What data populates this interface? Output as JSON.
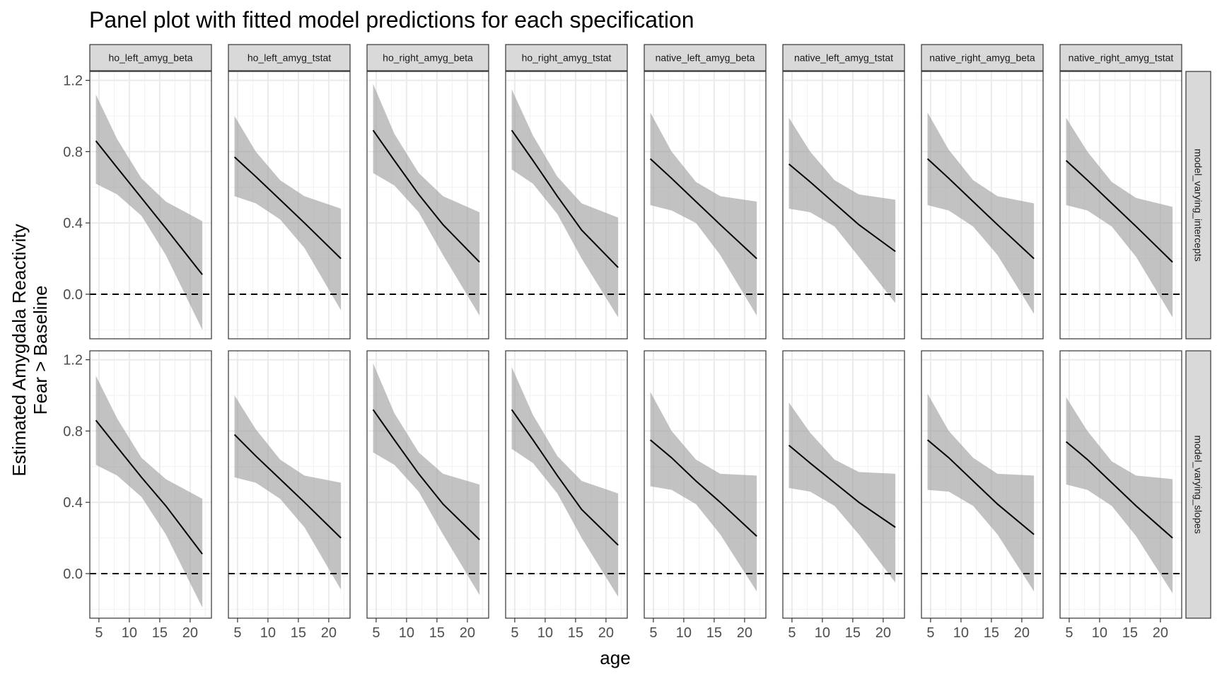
{
  "chart_data": {
    "type": "line",
    "title": "Panel plot with fitted model predictions for each specification",
    "xlabel": "age",
    "ylabel_lines": [
      "Estimated Amygdala Reactivity",
      "Fear > Baseline"
    ],
    "xlim": [
      3.5,
      23.5
    ],
    "ylim": [
      -0.25,
      1.25
    ],
    "x_ticks": [
      5,
      10,
      15,
      20
    ],
    "y_ticks": [
      0.0,
      0.4,
      0.8,
      1.2
    ],
    "y_tick_labels": [
      "0.0",
      "0.4",
      "0.8",
      "1.2"
    ],
    "reference_line": {
      "y": 0,
      "style": "dashed"
    },
    "grid": true,
    "colors": {
      "line": "#000000",
      "ribbon": "#999999",
      "strip_fill": "#d9d9d9",
      "grid": "#ebebeb",
      "border": "#333333"
    },
    "columns": [
      "ho_left_amyg_beta",
      "ho_left_amyg_tstat",
      "ho_right_amyg_beta",
      "ho_right_amyg_tstat",
      "native_left_amyg_beta",
      "native_left_amyg_tstat",
      "native_right_amyg_beta",
      "native_right_amyg_tstat"
    ],
    "rows": [
      "model_varying_intercepts",
      "model_varying_slopes"
    ],
    "panels": [
      [
        {
          "x": [
            4.5,
            8,
            12,
            16,
            22
          ],
          "fit": [
            0.86,
            0.71,
            0.54,
            0.37,
            0.11
          ],
          "lower": [
            0.62,
            0.56,
            0.44,
            0.22,
            -0.2
          ],
          "upper": [
            1.12,
            0.87,
            0.65,
            0.52,
            0.41
          ]
        },
        {
          "x": [
            4.5,
            8,
            12,
            16,
            22
          ],
          "fit": [
            0.77,
            0.66,
            0.53,
            0.4,
            0.2
          ],
          "lower": [
            0.55,
            0.51,
            0.42,
            0.26,
            -0.09
          ],
          "upper": [
            1.0,
            0.8,
            0.64,
            0.55,
            0.48
          ]
        },
        {
          "x": [
            4.5,
            8,
            12,
            16,
            22
          ],
          "fit": [
            0.92,
            0.75,
            0.56,
            0.39,
            0.18
          ],
          "lower": [
            0.68,
            0.61,
            0.46,
            0.22,
            -0.12
          ],
          "upper": [
            1.18,
            0.9,
            0.68,
            0.55,
            0.46
          ]
        },
        {
          "x": [
            4.5,
            8,
            12,
            16,
            22
          ],
          "fit": [
            0.92,
            0.75,
            0.55,
            0.36,
            0.15
          ],
          "lower": [
            0.7,
            0.62,
            0.45,
            0.2,
            -0.13
          ],
          "upper": [
            1.15,
            0.89,
            0.66,
            0.51,
            0.43
          ]
        },
        {
          "x": [
            4.5,
            8,
            12,
            16,
            22
          ],
          "fit": [
            0.76,
            0.65,
            0.52,
            0.39,
            0.2
          ],
          "lower": [
            0.5,
            0.47,
            0.4,
            0.22,
            -0.12
          ],
          "upper": [
            1.02,
            0.8,
            0.63,
            0.55,
            0.52
          ]
        },
        {
          "x": [
            4.5,
            8,
            12,
            16,
            22
          ],
          "fit": [
            0.73,
            0.63,
            0.51,
            0.39,
            0.24
          ],
          "lower": [
            0.48,
            0.46,
            0.38,
            0.21,
            -0.05
          ],
          "upper": [
            0.99,
            0.8,
            0.64,
            0.56,
            0.53
          ]
        },
        {
          "x": [
            4.5,
            8,
            12,
            16,
            22
          ],
          "fit": [
            0.76,
            0.65,
            0.52,
            0.39,
            0.2
          ],
          "lower": [
            0.5,
            0.47,
            0.38,
            0.22,
            -0.11
          ],
          "upper": [
            1.02,
            0.81,
            0.64,
            0.55,
            0.51
          ]
        },
        {
          "x": [
            4.5,
            8,
            12,
            16,
            22
          ],
          "fit": [
            0.75,
            0.64,
            0.51,
            0.38,
            0.18
          ],
          "lower": [
            0.5,
            0.47,
            0.38,
            0.21,
            -0.13
          ],
          "upper": [
            0.99,
            0.8,
            0.63,
            0.54,
            0.49
          ]
        }
      ],
      [
        {
          "x": [
            4.5,
            8,
            12,
            16,
            22
          ],
          "fit": [
            0.86,
            0.71,
            0.54,
            0.38,
            0.11
          ],
          "lower": [
            0.61,
            0.55,
            0.43,
            0.22,
            -0.19
          ],
          "upper": [
            1.11,
            0.87,
            0.65,
            0.53,
            0.42
          ]
        },
        {
          "x": [
            4.5,
            8,
            12,
            16,
            22
          ],
          "fit": [
            0.78,
            0.66,
            0.53,
            0.4,
            0.2
          ],
          "lower": [
            0.54,
            0.51,
            0.42,
            0.26,
            -0.09
          ],
          "upper": [
            1.0,
            0.81,
            0.64,
            0.55,
            0.51
          ]
        },
        {
          "x": [
            4.5,
            8,
            12,
            16,
            22
          ],
          "fit": [
            0.92,
            0.75,
            0.56,
            0.39,
            0.19
          ],
          "lower": [
            0.68,
            0.61,
            0.46,
            0.22,
            -0.12
          ],
          "upper": [
            1.18,
            0.9,
            0.68,
            0.56,
            0.5
          ]
        },
        {
          "x": [
            4.5,
            8,
            12,
            16,
            22
          ],
          "fit": [
            0.92,
            0.75,
            0.55,
            0.36,
            0.16
          ],
          "lower": [
            0.7,
            0.62,
            0.45,
            0.2,
            -0.13
          ],
          "upper": [
            1.16,
            0.89,
            0.66,
            0.52,
            0.45
          ]
        },
        {
          "x": [
            4.5,
            8,
            12,
            16,
            22
          ],
          "fit": [
            0.75,
            0.65,
            0.52,
            0.4,
            0.21
          ],
          "lower": [
            0.49,
            0.47,
            0.39,
            0.22,
            -0.1
          ],
          "upper": [
            1.02,
            0.8,
            0.64,
            0.56,
            0.55
          ]
        },
        {
          "x": [
            4.5,
            8,
            12,
            16,
            22
          ],
          "fit": [
            0.72,
            0.62,
            0.51,
            0.4,
            0.26
          ],
          "lower": [
            0.48,
            0.46,
            0.38,
            0.22,
            -0.05
          ],
          "upper": [
            0.96,
            0.79,
            0.64,
            0.57,
            0.56
          ]
        },
        {
          "x": [
            4.5,
            8,
            12,
            16,
            22
          ],
          "fit": [
            0.75,
            0.65,
            0.52,
            0.39,
            0.22
          ],
          "lower": [
            0.47,
            0.46,
            0.38,
            0.22,
            -0.1
          ],
          "upper": [
            1.01,
            0.8,
            0.65,
            0.56,
            0.55
          ]
        },
        {
          "x": [
            4.5,
            8,
            12,
            16,
            22
          ],
          "fit": [
            0.74,
            0.64,
            0.51,
            0.38,
            0.2
          ],
          "lower": [
            0.5,
            0.47,
            0.38,
            0.21,
            -0.11
          ],
          "upper": [
            0.99,
            0.8,
            0.63,
            0.55,
            0.53
          ]
        }
      ]
    ]
  }
}
